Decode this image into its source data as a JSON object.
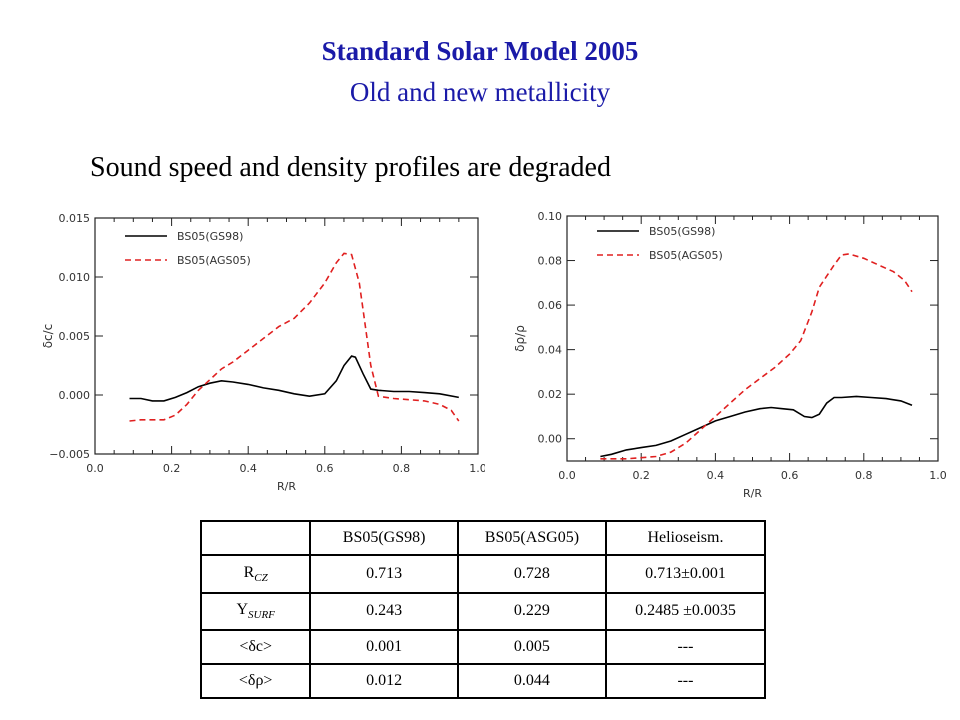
{
  "header": {
    "title": "Standard Solar Model 2005",
    "subtitle": "Old and new metallicity",
    "statement": "Sound speed and density profiles are degraded"
  },
  "chart_data": [
    {
      "type": "line",
      "ylabel": "δc/c",
      "xlabel": "R/R",
      "xlim": [
        0.0,
        1.0
      ],
      "ylim": [
        -0.005,
        0.015
      ],
      "xticks": [
        "0.0",
        "0.2",
        "0.4",
        "0.6",
        "0.8",
        "1.0"
      ],
      "yticks": [
        "−0.005",
        "0.000",
        "0.005",
        "0.010",
        "0.015"
      ],
      "ytick_values": [
        -0.005,
        0.0,
        0.005,
        0.01,
        0.015
      ],
      "legend_position": "top-left",
      "series": [
        {
          "name": "BS05(GS98)",
          "color": "#000000",
          "dash": "solid",
          "x": [
            0.09,
            0.12,
            0.15,
            0.18,
            0.21,
            0.24,
            0.27,
            0.3,
            0.33,
            0.36,
            0.4,
            0.44,
            0.48,
            0.52,
            0.56,
            0.6,
            0.63,
            0.65,
            0.67,
            0.68,
            0.7,
            0.72,
            0.74,
            0.78,
            0.82,
            0.86,
            0.9,
            0.95
          ],
          "y": [
            -0.0003,
            -0.0003,
            -0.0005,
            -0.0005,
            -0.0002,
            0.0002,
            0.0007,
            0.001,
            0.0012,
            0.0011,
            0.0009,
            0.0006,
            0.0004,
            0.0001,
            -0.0001,
            0.0001,
            0.0012,
            0.0025,
            0.0033,
            0.0032,
            0.0018,
            0.0005,
            0.0004,
            0.0003,
            0.0003,
            0.0002,
            0.0001,
            -0.0002
          ]
        },
        {
          "name": "BS05(AGS05)",
          "color": "#e02020",
          "dash": "dashed",
          "x": [
            0.09,
            0.12,
            0.15,
            0.18,
            0.21,
            0.24,
            0.27,
            0.3,
            0.33,
            0.36,
            0.4,
            0.44,
            0.48,
            0.52,
            0.56,
            0.6,
            0.63,
            0.65,
            0.67,
            0.69,
            0.7,
            0.72,
            0.74,
            0.78,
            0.82,
            0.86,
            0.9,
            0.93,
            0.95
          ],
          "y": [
            -0.0022,
            -0.0021,
            -0.0021,
            -0.0021,
            -0.0017,
            -0.0008,
            0.0004,
            0.0013,
            0.0022,
            0.0028,
            0.0038,
            0.0048,
            0.0058,
            0.0065,
            0.0078,
            0.0095,
            0.0112,
            0.012,
            0.0119,
            0.0095,
            0.0072,
            0.0025,
            -0.0001,
            -0.0003,
            -0.0004,
            -0.0005,
            -0.0008,
            -0.0013,
            -0.0022
          ]
        }
      ]
    },
    {
      "type": "line",
      "ylabel": "δρ/ρ",
      "xlabel": "R/R",
      "xlim": [
        0.0,
        1.0
      ],
      "ylim": [
        -0.01,
        0.1
      ],
      "xticks": [
        "0.0",
        "0.2",
        "0.4",
        "0.6",
        "0.8",
        "1.0"
      ],
      "yticks": [
        "0.00",
        "0.02",
        "0.04",
        "0.06",
        "0.08",
        "0.10"
      ],
      "ytick_values": [
        0.0,
        0.02,
        0.04,
        0.06,
        0.08,
        0.1
      ],
      "legend_position": "top-left",
      "series": [
        {
          "name": "BS05(GS98)",
          "color": "#000000",
          "dash": "solid",
          "x": [
            0.09,
            0.12,
            0.16,
            0.2,
            0.24,
            0.28,
            0.32,
            0.36,
            0.4,
            0.44,
            0.48,
            0.52,
            0.55,
            0.58,
            0.61,
            0.64,
            0.66,
            0.68,
            0.7,
            0.72,
            0.74,
            0.78,
            0.82,
            0.86,
            0.9,
            0.93
          ],
          "y": [
            -0.008,
            -0.007,
            -0.005,
            -0.004,
            -0.003,
            -0.001,
            0.002,
            0.005,
            0.008,
            0.01,
            0.012,
            0.0135,
            0.014,
            0.0135,
            0.013,
            0.01,
            0.0095,
            0.011,
            0.016,
            0.0185,
            0.0185,
            0.019,
            0.0185,
            0.018,
            0.017,
            0.015
          ]
        },
        {
          "name": "BS05(AGS05)",
          "color": "#e02020",
          "dash": "dashed",
          "x": [
            0.09,
            0.12,
            0.16,
            0.2,
            0.24,
            0.28,
            0.32,
            0.36,
            0.4,
            0.44,
            0.48,
            0.52,
            0.56,
            0.6,
            0.63,
            0.66,
            0.68,
            0.7,
            0.72,
            0.74,
            0.76,
            0.8,
            0.84,
            0.88,
            0.91,
            0.93
          ],
          "y": [
            -0.009,
            -0.009,
            -0.009,
            -0.0085,
            -0.008,
            -0.006,
            -0.002,
            0.004,
            0.01,
            0.016,
            0.022,
            0.027,
            0.032,
            0.038,
            0.044,
            0.057,
            0.068,
            0.073,
            0.078,
            0.0825,
            0.083,
            0.081,
            0.078,
            0.075,
            0.071,
            0.066
          ]
        }
      ]
    }
  ],
  "table": {
    "headers": [
      "",
      "BS05(GS98)",
      "BS05(ASG05)",
      "Helioseism."
    ],
    "rows": [
      {
        "label": "R",
        "sub": "CZ",
        "values": [
          "0.713",
          "0.728",
          "0.713±0.001"
        ]
      },
      {
        "label": "Y",
        "sub": "SURF",
        "values": [
          "0.243",
          "0.229",
          "0.2485 ±0.0035"
        ]
      },
      {
        "label": "<δc>",
        "sub": "",
        "values": [
          "0.001",
          "0.005",
          "---"
        ]
      },
      {
        "label": "<δρ>",
        "sub": "",
        "values": [
          "0.012",
          "0.044",
          "---"
        ]
      }
    ]
  }
}
